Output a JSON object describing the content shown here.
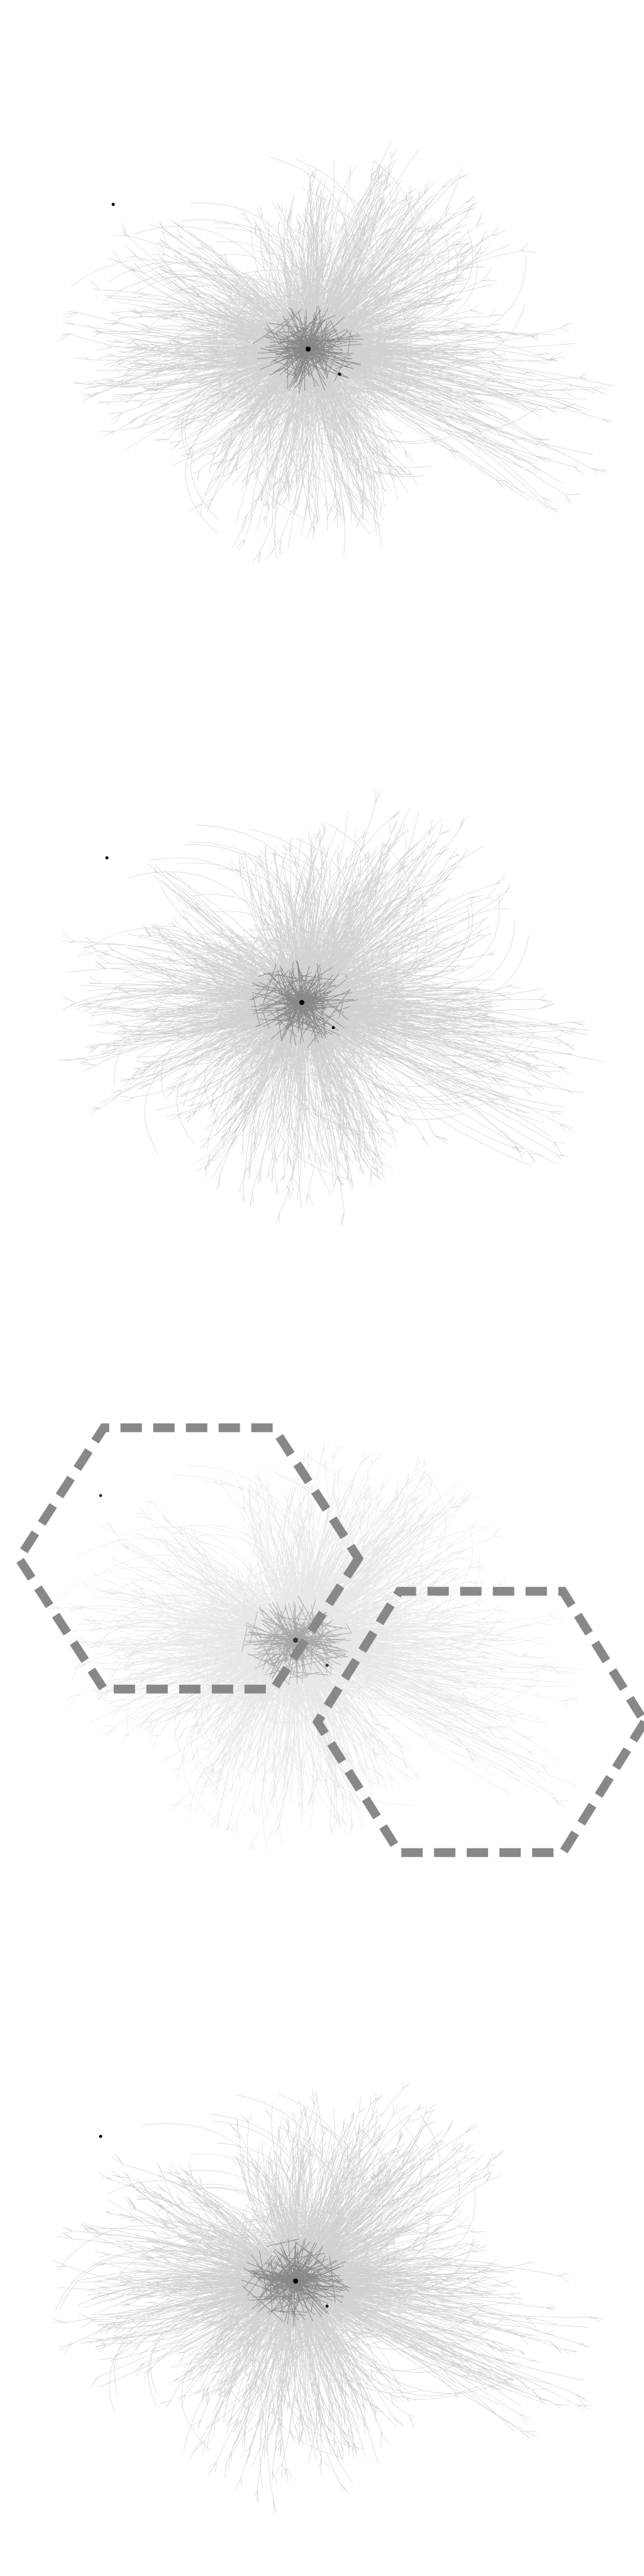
{
  "figure": {
    "panels": [
      {
        "id": "panel-1",
        "kind": "dense-network-graph",
        "edge_color": "#000000",
        "edge_opacity": 0.18,
        "dense_core_color": "#000000",
        "seed": 11,
        "has_overlay": false
      },
      {
        "id": "panel-2",
        "kind": "dense-network-graph",
        "edge_color": "#000000",
        "edge_opacity": 0.18,
        "dense_core_color": "#000000",
        "seed": 23,
        "has_overlay": false
      },
      {
        "id": "panel-3",
        "kind": "dense-network-graph-with-hex-overlay",
        "edge_color": "#555555",
        "edge_opacity": 0.14,
        "dense_core_color": "#333333",
        "seed": 37,
        "has_overlay": true,
        "overlay": {
          "shape": "hexagon",
          "count": 2,
          "stroke_color": "#888888",
          "stroke_style": "dashed"
        }
      },
      {
        "id": "panel-4",
        "kind": "dense-network-graph",
        "edge_color": "#000000",
        "edge_opacity": 0.18,
        "dense_core_color": "#000000",
        "seed": 51,
        "has_overlay": false
      }
    ]
  }
}
